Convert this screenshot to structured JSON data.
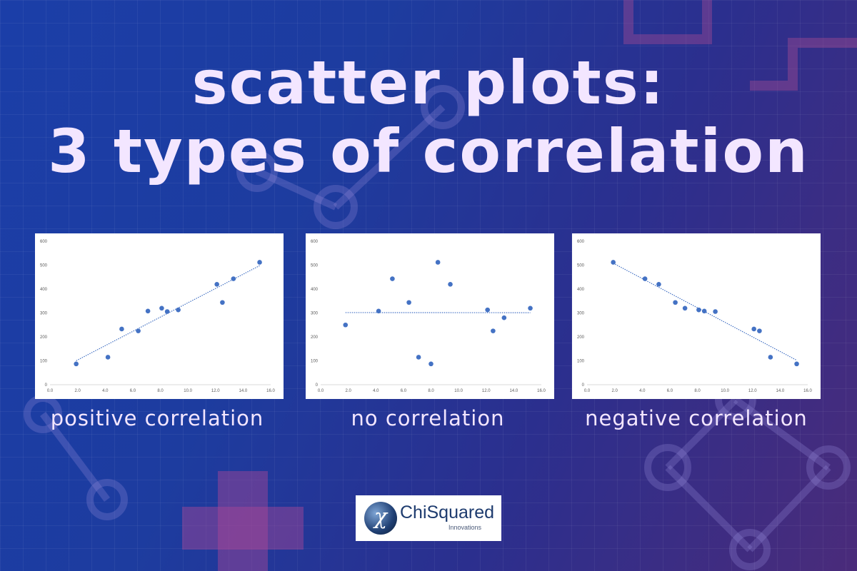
{
  "title": {
    "line1": "scatter plots:",
    "line2": "3 types of correlation"
  },
  "colors": {
    "marker": "#4472c4",
    "trendline": "#4472c4",
    "text": "#f3e6ff",
    "background_start": "#1b3ea8",
    "background_end": "#4a2b7a"
  },
  "logo": {
    "name": "ChiSquared",
    "subtitle": "Innovations",
    "mark": "chi-symbol"
  },
  "chart_data": [
    {
      "type": "scatter",
      "caption": "positive correlation",
      "xlim": [
        0,
        16
      ],
      "ylim": [
        0,
        600
      ],
      "xticks": [
        "0.0",
        "2.0",
        "4.0",
        "6.0",
        "8.0",
        "10.0",
        "12.0",
        "14.0",
        "16.0"
      ],
      "yticks": [
        "0",
        "100",
        "200",
        "300",
        "400",
        "500",
        "600"
      ],
      "points": [
        [
          1.9,
          87
        ],
        [
          4.2,
          115
        ],
        [
          5.2,
          233
        ],
        [
          6.4,
          225
        ],
        [
          7.1,
          308
        ],
        [
          8.1,
          320
        ],
        [
          8.5,
          306
        ],
        [
          9.3,
          313
        ],
        [
          12.1,
          420
        ],
        [
          12.5,
          344
        ],
        [
          13.3,
          443
        ],
        [
          15.2,
          512
        ]
      ],
      "trendline": "linear",
      "grid": false
    },
    {
      "type": "scatter",
      "caption": "no correlation",
      "xlim": [
        0,
        16
      ],
      "ylim": [
        0,
        600
      ],
      "xticks": [
        "0.0",
        "2.0",
        "4.0",
        "6.0",
        "8.0",
        "10.0",
        "12.0",
        "14.0",
        "16.0"
      ],
      "yticks": [
        "0",
        "100",
        "200",
        "300",
        "400",
        "500",
        "600"
      ],
      "points": [
        [
          1.8,
          250
        ],
        [
          4.2,
          308
        ],
        [
          5.2,
          443
        ],
        [
          6.4,
          344
        ],
        [
          7.1,
          115
        ],
        [
          8.0,
          87
        ],
        [
          8.5,
          512
        ],
        [
          9.4,
          420
        ],
        [
          12.1,
          313
        ],
        [
          12.5,
          225
        ],
        [
          13.3,
          280
        ],
        [
          15.2,
          320
        ]
      ],
      "trendline": "linear",
      "grid": false
    },
    {
      "type": "scatter",
      "caption": "negative correlation",
      "xlim": [
        0,
        16
      ],
      "ylim": [
        0,
        600
      ],
      "xticks": [
        "0.0",
        "2.0",
        "4.0",
        "6.0",
        "8.0",
        "10.0",
        "12.0",
        "14.0",
        "16.0"
      ],
      "yticks": [
        "0",
        "100",
        "200",
        "300",
        "400",
        "500",
        "600"
      ],
      "points": [
        [
          1.9,
          512
        ],
        [
          4.2,
          443
        ],
        [
          5.2,
          420
        ],
        [
          6.4,
          344
        ],
        [
          7.1,
          320
        ],
        [
          8.1,
          313
        ],
        [
          8.5,
          308
        ],
        [
          9.3,
          306
        ],
        [
          12.1,
          233
        ],
        [
          12.5,
          225
        ],
        [
          13.3,
          115
        ],
        [
          15.2,
          87
        ]
      ],
      "trendline": "linear",
      "grid": false
    }
  ]
}
